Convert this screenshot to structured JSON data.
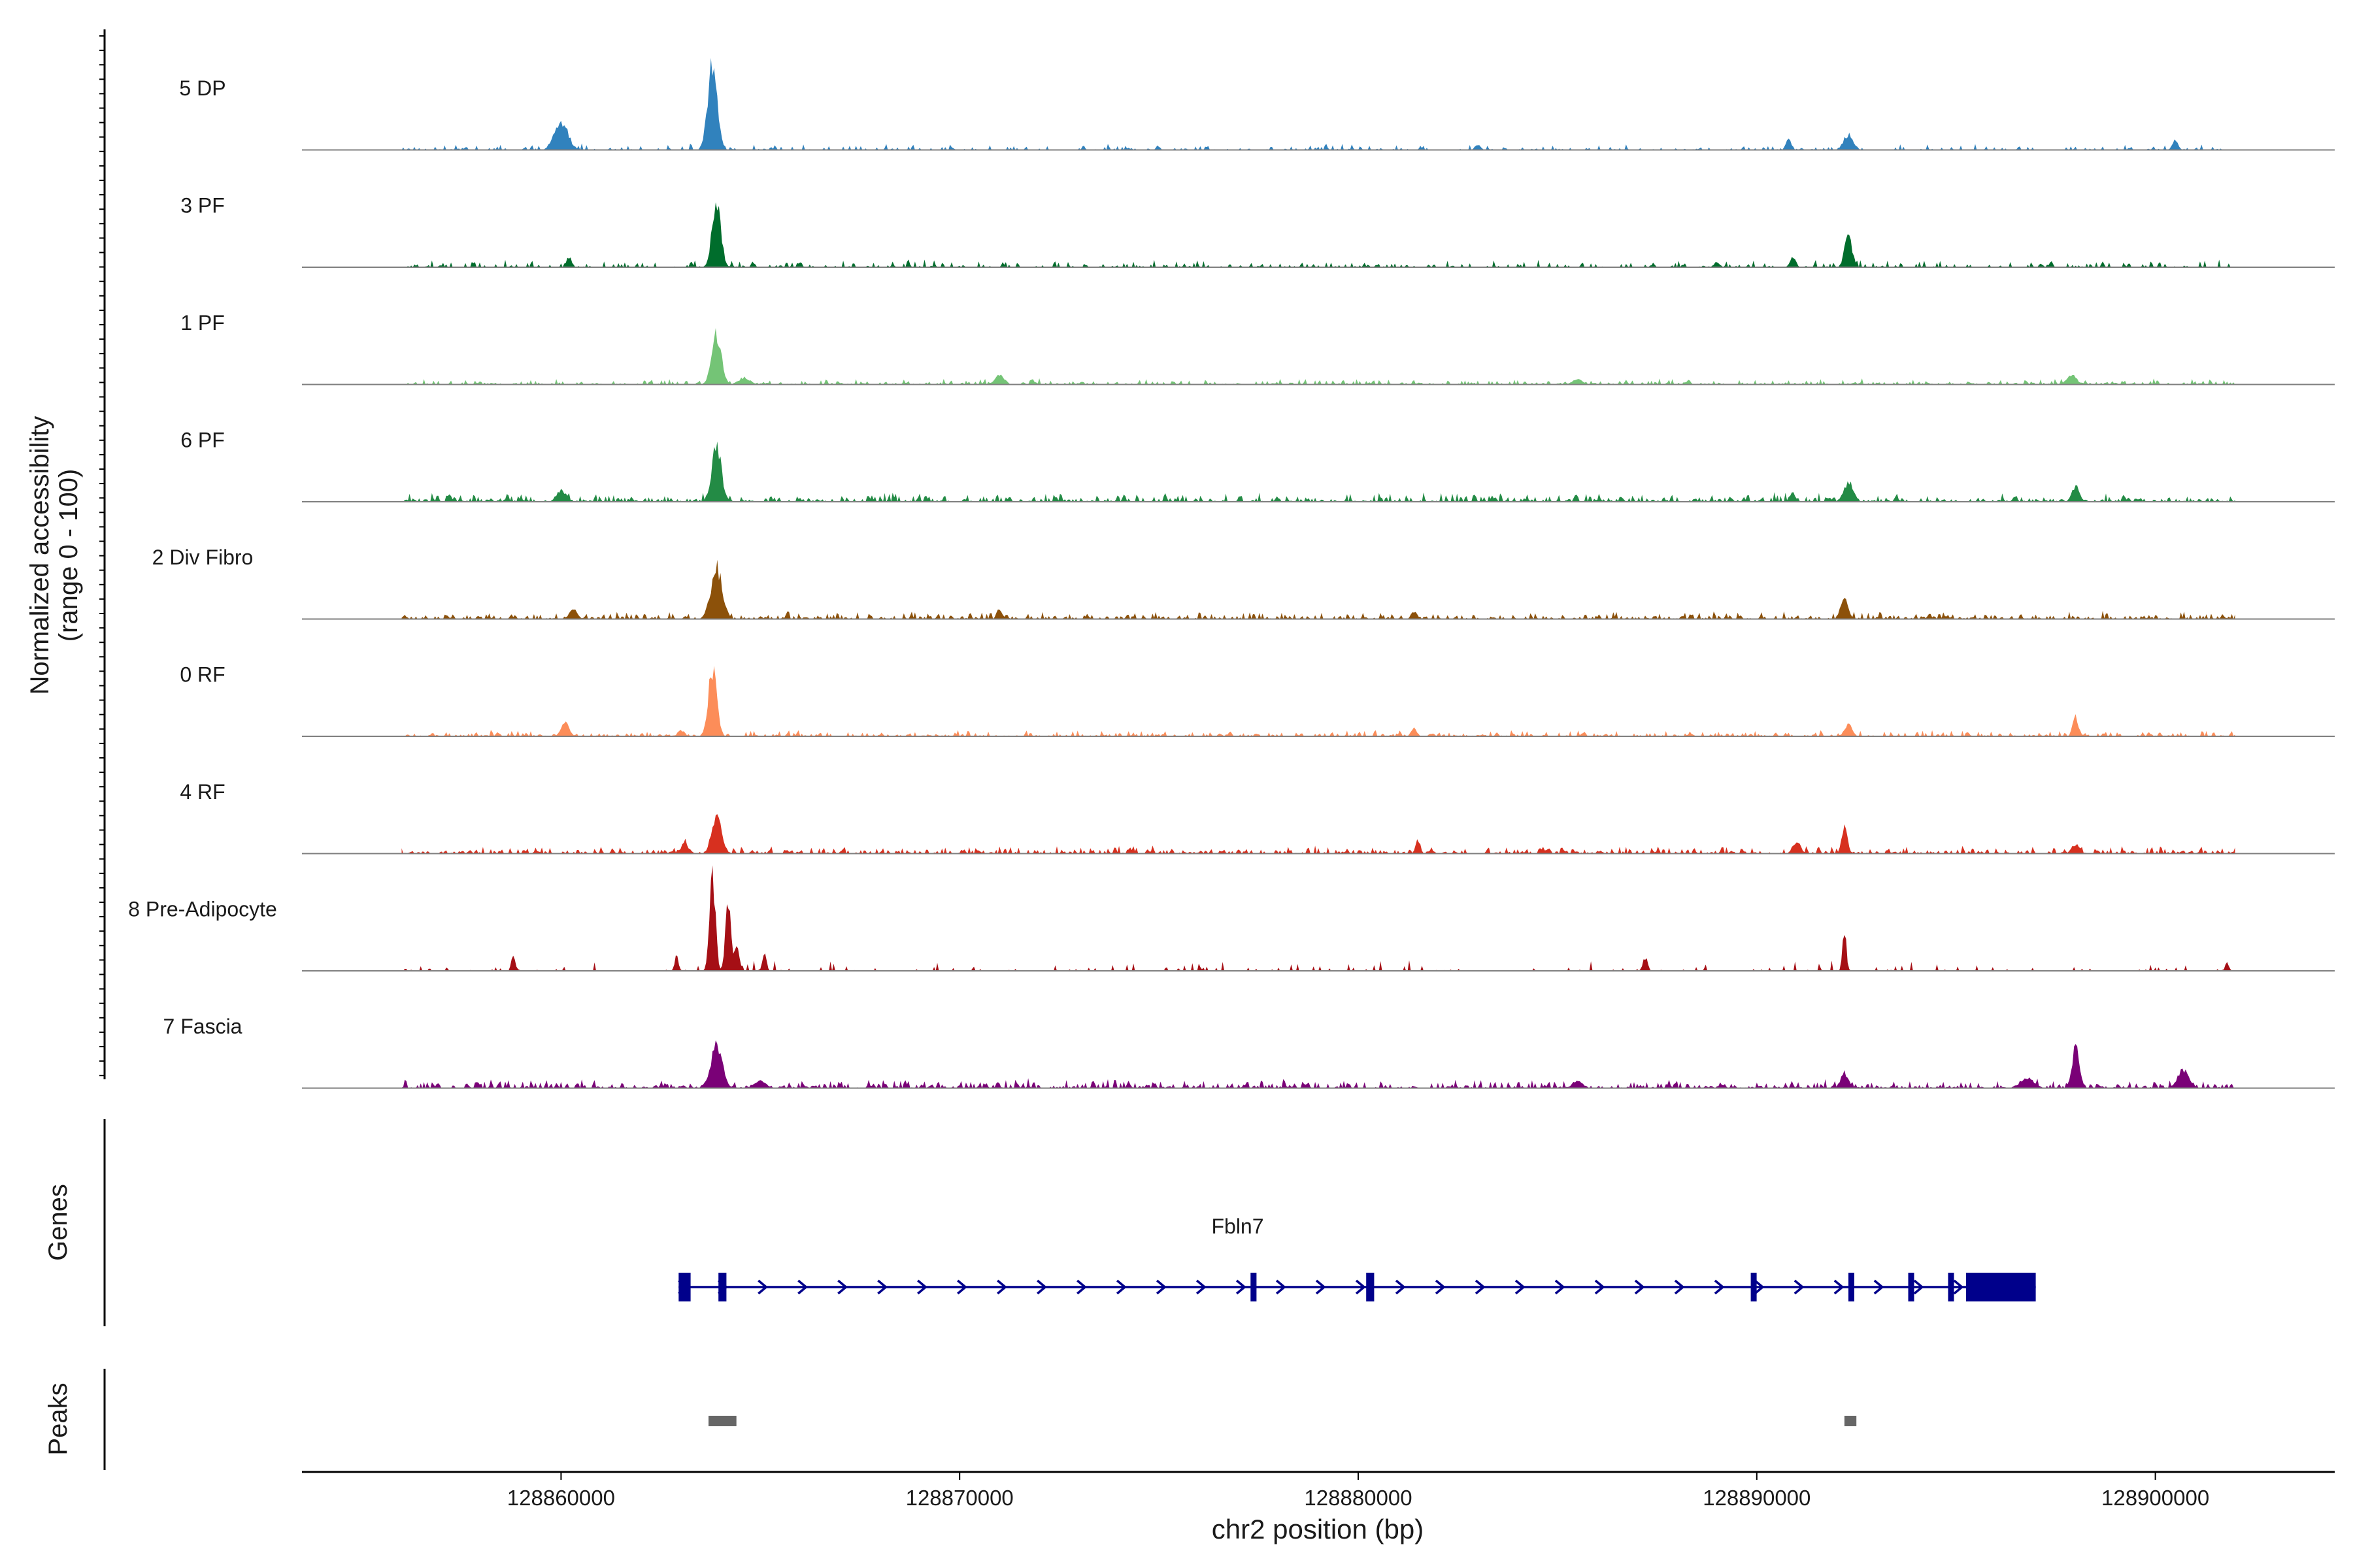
{
  "chart_data": {
    "type": "area",
    "title": "",
    "xlabel": "chr2 position (bp)",
    "ylabel_line1": "Normalized accessibility",
    "ylabel_line2": "(range 0 - 100)",
    "xlim": [
      128853500,
      128904500
    ],
    "xticks": [
      128860000,
      128870000,
      128880000,
      128890000,
      128900000
    ],
    "xtick_labels": [
      "128860000",
      "128870000",
      "128880000",
      "128890000",
      "128900000"
    ],
    "signal_range": [
      128856000,
      128902000
    ],
    "genes_label": "Genes",
    "peaks_label": "Peaks",
    "tracks": [
      {
        "name": "5 DP",
        "color": "#3182bd",
        "noise": 0.04,
        "density": 0.45,
        "peaks": [
          [
            128860000,
            0.3,
            350
          ],
          [
            128863800,
            0.85,
            250
          ],
          [
            128892300,
            0.16,
            250
          ],
          [
            128890800,
            0.1,
            150
          ],
          [
            128900500,
            0.1,
            150
          ],
          [
            128883000,
            0.05,
            150
          ]
        ]
      },
      {
        "name": "3 PF",
        "color": "#006d2c",
        "noise": 0.05,
        "density": 0.5,
        "peaks": [
          [
            128863900,
            0.72,
            220
          ],
          [
            128892300,
            0.32,
            200
          ],
          [
            128890900,
            0.1,
            150
          ],
          [
            128860200,
            0.1,
            150
          ],
          [
            128889000,
            0.05,
            150
          ]
        ]
      },
      {
        "name": "1 PF",
        "color": "#74c476",
        "noise": 0.04,
        "density": 0.7,
        "peaks": [
          [
            128863900,
            0.5,
            250
          ],
          [
            128871000,
            0.1,
            250
          ],
          [
            128897900,
            0.1,
            250
          ],
          [
            128885500,
            0.06,
            250
          ],
          [
            128864600,
            0.07,
            300
          ]
        ]
      },
      {
        "name": "6 PF",
        "color": "#238b45",
        "noise": 0.06,
        "density": 0.75,
        "peaks": [
          [
            128863900,
            0.58,
            250
          ],
          [
            128892300,
            0.2,
            250
          ],
          [
            128898000,
            0.16,
            200
          ],
          [
            128860000,
            0.12,
            250
          ],
          [
            128890900,
            0.1,
            150
          ]
        ]
      },
      {
        "name": "2 Div Fibro",
        "color": "#8c510a",
        "noise": 0.05,
        "density": 0.7,
        "peaks": [
          [
            128863900,
            0.52,
            300
          ],
          [
            128892200,
            0.22,
            200
          ],
          [
            128860300,
            0.1,
            200
          ],
          [
            128871000,
            0.1,
            150
          ],
          [
            128881400,
            0.08,
            150
          ]
        ]
      },
      {
        "name": "0 RF",
        "color": "#fc8d59",
        "noise": 0.04,
        "density": 0.7,
        "peaks": [
          [
            128863800,
            0.68,
            220
          ],
          [
            128860100,
            0.16,
            200
          ],
          [
            128898000,
            0.2,
            150
          ],
          [
            128892300,
            0.12,
            200
          ],
          [
            128881400,
            0.08,
            150
          ],
          [
            128863000,
            0.06,
            150
          ]
        ]
      },
      {
        "name": "4 RF",
        "color": "#d7301f",
        "noise": 0.05,
        "density": 0.75,
        "peaks": [
          [
            128863900,
            0.38,
            250
          ],
          [
            128892200,
            0.26,
            150
          ],
          [
            128863100,
            0.14,
            150
          ],
          [
            128881500,
            0.14,
            120
          ],
          [
            128891000,
            0.12,
            200
          ],
          [
            128898000,
            0.1,
            200
          ]
        ]
      },
      {
        "name": "8 Pre-Adipocyte",
        "color": "#a50f15",
        "noise": 0.07,
        "density": 0.15,
        "peaks": [
          [
            128863800,
            1.0,
            150
          ],
          [
            128864200,
            0.7,
            150
          ],
          [
            128864400,
            0.25,
            150
          ],
          [
            128862900,
            0.15,
            100
          ],
          [
            128865100,
            0.2,
            100
          ],
          [
            128892200,
            0.4,
            100
          ],
          [
            128858800,
            0.18,
            100
          ],
          [
            128887200,
            0.14,
            120
          ],
          [
            128901800,
            0.08,
            100
          ]
        ]
      },
      {
        "name": "7 Fascia",
        "color": "#7a0177",
        "noise": 0.06,
        "density": 0.75,
        "peaks": [
          [
            128863900,
            0.45,
            300
          ],
          [
            128898000,
            0.4,
            200
          ],
          [
            128900700,
            0.18,
            300
          ],
          [
            128892200,
            0.16,
            200
          ],
          [
            128896800,
            0.1,
            350
          ],
          [
            128885500,
            0.08,
            250
          ],
          [
            128865000,
            0.07,
            300
          ]
        ]
      }
    ],
    "gene": {
      "name": "Fbln7",
      "color": "#00008b",
      "start": 128862950,
      "end": 128897000,
      "strand": "+",
      "exons": [
        [
          128862950,
          128863250
        ],
        [
          128863950,
          128864150
        ],
        [
          128877300,
          128877450
        ],
        [
          128880200,
          128880400
        ],
        [
          128889850,
          128889950
        ],
        [
          128892300,
          128892400
        ],
        [
          128893800,
          128893900
        ],
        [
          128894800,
          128894900
        ],
        [
          128895250,
          128897000
        ]
      ]
    },
    "peaks": [
      [
        128863700,
        128864400
      ],
      [
        128892200,
        128892500
      ]
    ],
    "peak_color": "#666666"
  }
}
